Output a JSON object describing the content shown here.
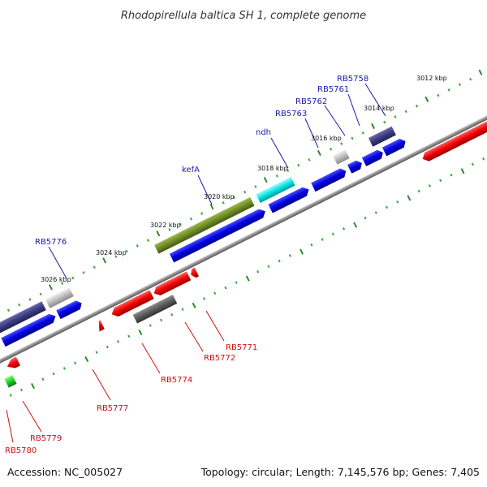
{
  "title": "Rhodopirellula baltica SH 1, complete genome",
  "accession": "Accession: NC_005027",
  "topology": "Topology: circular; Length: 7,145,576 bp; Genes: 7,405",
  "colors": {
    "backbone": "#8a8a8a",
    "tick_major": "#2d8a2d",
    "tick_minor": "#33a833",
    "label_forward": "#1a1aaa",
    "label_reverse": "#cc1111"
  },
  "ticks": [
    "3012 kbp",
    "3014 kbp",
    "3016 kbp",
    "3018 kbp",
    "3020 kbp",
    "3022 kbp",
    "3024 kbp",
    "3026 kbp"
  ],
  "genes_forward": [
    {
      "label": "RB5758"
    },
    {
      "label": "RB5761"
    },
    {
      "label": "RB5762"
    },
    {
      "label": "RB5763"
    },
    {
      "label": "ndh"
    },
    {
      "label": "kefA"
    },
    {
      "label": "RB5776"
    }
  ],
  "genes_reverse": [
    {
      "label": "RB5771"
    },
    {
      "label": "RB5772"
    },
    {
      "label": "RB5774"
    },
    {
      "label": "RB5777"
    },
    {
      "label": "RB5779"
    },
    {
      "label": "RB5780"
    }
  ]
}
